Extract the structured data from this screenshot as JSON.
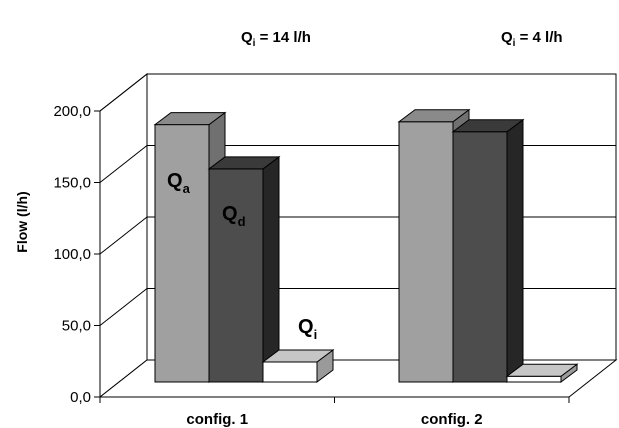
{
  "chart_data": {
    "type": "bar",
    "categories": [
      "config. 1",
      "config. 2"
    ],
    "series": [
      {
        "name": "Qa",
        "values": [
          180,
          182
        ]
      },
      {
        "name": "Qd",
        "values": [
          149,
          175
        ]
      },
      {
        "name": "Qi",
        "values": [
          14,
          4
        ]
      }
    ],
    "ylabel": "Flow (l/h)",
    "ylim": [
      0,
      200
    ],
    "yticks": [
      "0,0",
      "50,0",
      "100,0",
      "150,0",
      "200,0"
    ],
    "grid": true,
    "colors": [
      "#a0a0a0",
      "#4d4d4d",
      "#ffffff"
    ],
    "annotations": {
      "config1": {
        "prefix": "Q",
        "sub": "i",
        "suffix": " = 14 l/h"
      },
      "config2": {
        "prefix": "Q",
        "sub": "i",
        "suffix": " = 4 l/h"
      },
      "label_qa": {
        "main": "Q",
        "sub": "a"
      },
      "label_qd": {
        "main": "Q",
        "sub": "d"
      },
      "label_qi": {
        "main": "Q",
        "sub": "i"
      }
    }
  }
}
